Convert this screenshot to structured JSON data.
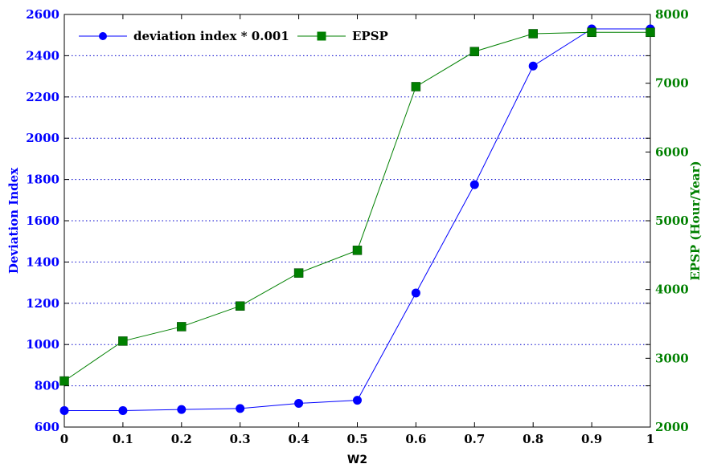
{
  "chart_data": {
    "type": "line",
    "title": "",
    "xlabel": "W2",
    "ylabel_left": "Deviation Index",
    "ylabel_right": "EPSP (Hour/Year)",
    "x": [
      0,
      0.1,
      0.2,
      0.3,
      0.4,
      0.5,
      0.6,
      0.7,
      0.8,
      0.9,
      1
    ],
    "x_tick_labels": [
      "0",
      "0.1",
      "0.2",
      "0.3",
      "0.4",
      "0.5",
      "0.6",
      "0.7",
      "0.8",
      "0.9",
      "1"
    ],
    "xlim": [
      0,
      1
    ],
    "ylim_left": [
      600,
      2600
    ],
    "y_left_ticks": [
      600,
      800,
      1000,
      1200,
      1400,
      1600,
      1800,
      2000,
      2200,
      2400,
      2600
    ],
    "ylim_right": [
      2000,
      8000
    ],
    "y_right_ticks": [
      2000,
      3000,
      4000,
      5000,
      6000,
      7000,
      8000
    ],
    "grid": "horizontal dotted",
    "legend_position": "top-left",
    "series": [
      {
        "name": "deviation index * 0.001",
        "axis": "left",
        "color": "#0000ff",
        "marker": "circle",
        "values": [
          680,
          680,
          685,
          690,
          715,
          730,
          1250,
          1775,
          2350,
          2530,
          2530
        ]
      },
      {
        "name": "EPSP",
        "axis": "right",
        "color": "#008000",
        "marker": "square",
        "values": [
          2670,
          3250,
          3460,
          3760,
          4240,
          4570,
          6950,
          7460,
          7720,
          7740,
          7740
        ]
      }
    ],
    "colors": {
      "left_axis": "#0000ff",
      "right_axis": "#008000",
      "grid": "#0000cc"
    }
  }
}
